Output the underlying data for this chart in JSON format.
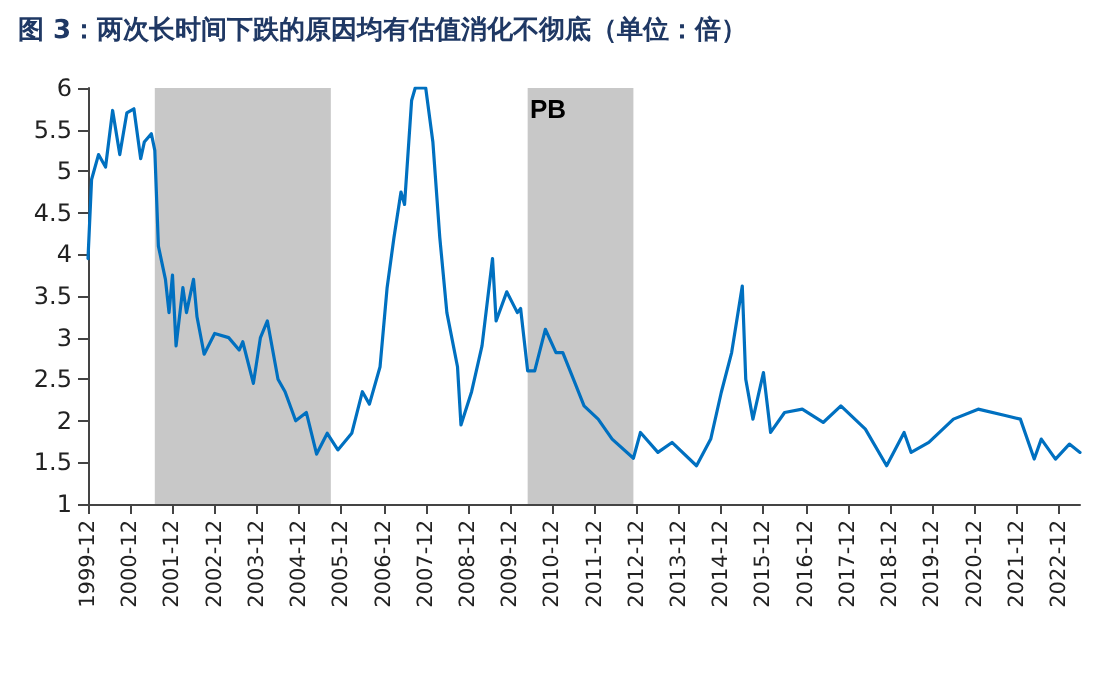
{
  "chart_data": {
    "type": "line",
    "title": "图 3：两次长时间下跌的原因均有估值消化不彻底（单位：倍）",
    "annotations": [
      "PB"
    ],
    "x": [
      "1999-12",
      "2000-01",
      "2000-03",
      "2000-05",
      "2000-07",
      "2000-09",
      "2000-11",
      "2001-01",
      "2001-03",
      "2001-04",
      "2001-06",
      "2001-07",
      "2001-08",
      "2001-10",
      "2001-11",
      "2001-12",
      "2002-01",
      "2002-03",
      "2002-04",
      "2002-06",
      "2002-07",
      "2002-09",
      "2002-12",
      "2003-04",
      "2003-07",
      "2003-08",
      "2003-11",
      "2004-01",
      "2004-03",
      "2004-06",
      "2004-08",
      "2004-11",
      "2005-02",
      "2005-05",
      "2005-08",
      "2005-11",
      "2006-03",
      "2006-06",
      "2006-08",
      "2006-11",
      "2007-01",
      "2007-03",
      "2007-05",
      "2007-06",
      "2007-08",
      "2007-09",
      "2007-12",
      "2008-02",
      "2008-04",
      "2008-06",
      "2008-09",
      "2008-10",
      "2009-01",
      "2009-04",
      "2009-07",
      "2009-08",
      "2009-11",
      "2010-02",
      "2010-03",
      "2010-05",
      "2010-07",
      "2010-10",
      "2011-01",
      "2011-03",
      "2011-06",
      "2011-09",
      "2012-01",
      "2012-05",
      "2012-11",
      "2013-01",
      "2013-06",
      "2013-10",
      "2014-05",
      "2014-09",
      "2014-12",
      "2015-03",
      "2015-06",
      "2015-07",
      "2015-09",
      "2015-12",
      "2016-02",
      "2016-06",
      "2016-11",
      "2017-05",
      "2017-10",
      "2018-05",
      "2018-11",
      "2019-04",
      "2019-06",
      "2019-11",
      "2020-06",
      "2021-01",
      "2021-09",
      "2022-01",
      "2022-05",
      "2022-07",
      "2022-11",
      "2023-03",
      "2023-06"
    ],
    "series": [
      {
        "color": "#0070c0",
        "values": [
          3.95,
          4.9,
          5.2,
          5.05,
          5.73,
          5.2,
          5.7,
          5.75,
          5.15,
          5.35,
          5.45,
          5.25,
          4.1,
          3.7,
          3.3,
          3.75,
          2.9,
          3.6,
          3.3,
          3.7,
          3.25,
          2.8,
          3.05,
          3.0,
          2.85,
          2.95,
          2.45,
          3.0,
          3.2,
          2.5,
          2.35,
          2.0,
          2.1,
          1.6,
          1.85,
          1.65,
          1.85,
          2.35,
          2.2,
          2.65,
          3.6,
          4.2,
          4.75,
          4.6,
          5.85,
          6.0,
          6.0,
          5.35,
          4.2,
          3.3,
          2.65,
          1.95,
          2.35,
          2.9,
          3.95,
          3.2,
          3.55,
          3.3,
          3.35,
          2.6,
          2.6,
          3.1,
          2.82,
          2.82,
          2.5,
          2.18,
          2.02,
          1.78,
          1.55,
          1.86,
          1.62,
          1.74,
          1.46,
          1.78,
          2.34,
          2.82,
          3.62,
          2.5,
          2.02,
          2.58,
          1.86,
          2.1,
          2.14,
          1.98,
          2.18,
          1.9,
          1.46,
          1.86,
          1.62,
          1.74,
          2.02,
          2.14,
          2.06,
          2.02,
          1.54,
          1.78,
          1.54,
          1.72,
          1.62
        ]
      }
    ],
    "xlim": [
      "1999-12",
      "2023-06"
    ],
    "xticks": [
      "1999-12",
      "2000-12",
      "2001-12",
      "2002-12",
      "2003-12",
      "2004-12",
      "2005-12",
      "2006-12",
      "2007-12",
      "2008-12",
      "2009-12",
      "2010-12",
      "2011-12",
      "2012-12",
      "2013-12",
      "2014-12",
      "2015-12",
      "2016-12",
      "2017-12",
      "2018-12",
      "2019-12",
      "2020-12",
      "2021-12",
      "2022-12"
    ],
    "ylim": [
      1,
      6
    ],
    "yticks": [
      1,
      1.5,
      2,
      2.5,
      3,
      3.5,
      4,
      4.5,
      5,
      5.5,
      6
    ],
    "bands": [
      {
        "axis": "x",
        "from": "2001-07",
        "to": "2005-09",
        "color": "#c8c8c8"
      },
      {
        "axis": "x",
        "from": "2010-05",
        "to": "2012-11",
        "color": "#c8c8c8"
      }
    ],
    "grid": false,
    "line_style": "solid",
    "marker": "none"
  }
}
